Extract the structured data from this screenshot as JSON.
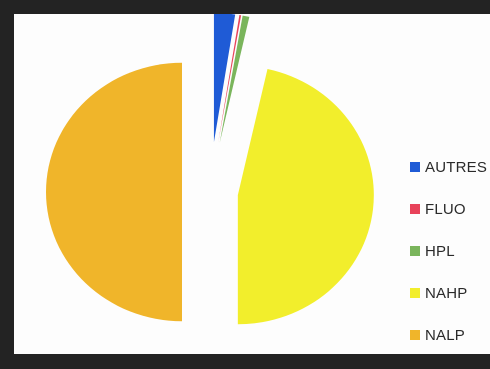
{
  "chart_data": {
    "type": "pie",
    "title": "",
    "legend_position": "right",
    "exploded": true,
    "slices": [
      {
        "label": "AUTRES",
        "value": 2.5,
        "color": "#1f5bd6"
      },
      {
        "label": "FLUO",
        "value": 0.2,
        "color": "#e8425a"
      },
      {
        "label": "HPL",
        "value": 0.8,
        "color": "#7ab55c"
      },
      {
        "label": "NAHP",
        "value": 46.5,
        "color": "#f2ee2c"
      },
      {
        "label": "NALP",
        "value": 50.0,
        "color": "#f0b52a"
      }
    ]
  }
}
